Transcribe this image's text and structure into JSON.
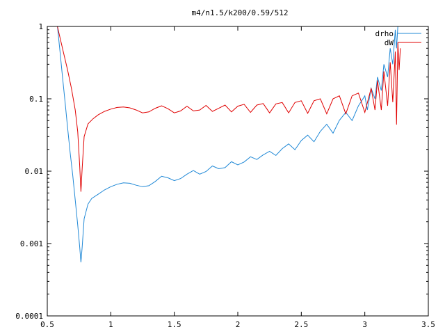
{
  "chart_data": {
    "type": "line",
    "title": "m4/n1.5/k200/0.59/512",
    "xlabel": "",
    "ylabel": "",
    "xlim": [
      0.5,
      3.5
    ],
    "ylim": [
      0.0001,
      1
    ],
    "yscale": "log",
    "grid": false,
    "legend_position": "top-right",
    "x_ticks": [
      "0.5",
      "1",
      "1.5",
      "2",
      "2.5",
      "3",
      "3.5"
    ],
    "y_ticks": [
      "1",
      "0.1",
      "0.01",
      "0.001",
      "0.0001"
    ],
    "series": [
      {
        "name": "drho",
        "color": "#1f88d6",
        "points": [
          [
            0.58,
            1.0
          ],
          [
            0.6,
            0.45
          ],
          [
            0.62,
            0.2
          ],
          [
            0.64,
            0.09
          ],
          [
            0.66,
            0.04
          ],
          [
            0.68,
            0.018
          ],
          [
            0.7,
            0.009
          ],
          [
            0.72,
            0.004
          ],
          [
            0.74,
            0.0018
          ],
          [
            0.755,
            0.0009
          ],
          [
            0.765,
            0.00055
          ],
          [
            0.775,
            0.0009
          ],
          [
            0.79,
            0.0022
          ],
          [
            0.82,
            0.0035
          ],
          [
            0.85,
            0.0042
          ],
          [
            0.9,
            0.0048
          ],
          [
            0.95,
            0.0055
          ],
          [
            1.0,
            0.0061
          ],
          [
            1.05,
            0.0066
          ],
          [
            1.1,
            0.0069
          ],
          [
            1.15,
            0.0068
          ],
          [
            1.2,
            0.0064
          ],
          [
            1.25,
            0.0061
          ],
          [
            1.3,
            0.0063
          ],
          [
            1.35,
            0.0072
          ],
          [
            1.4,
            0.0085
          ],
          [
            1.45,
            0.0081
          ],
          [
            1.5,
            0.0074
          ],
          [
            1.55,
            0.0079
          ],
          [
            1.6,
            0.0091
          ],
          [
            1.65,
            0.0102
          ],
          [
            1.7,
            0.0091
          ],
          [
            1.75,
            0.0099
          ],
          [
            1.8,
            0.0118
          ],
          [
            1.85,
            0.0108
          ],
          [
            1.9,
            0.0112
          ],
          [
            1.95,
            0.0135
          ],
          [
            2.0,
            0.0122
          ],
          [
            2.05,
            0.0134
          ],
          [
            2.1,
            0.0158
          ],
          [
            2.15,
            0.0145
          ],
          [
            2.2,
            0.0168
          ],
          [
            2.25,
            0.0188
          ],
          [
            2.3,
            0.0165
          ],
          [
            2.35,
            0.0205
          ],
          [
            2.4,
            0.0238
          ],
          [
            2.45,
            0.0198
          ],
          [
            2.5,
            0.0265
          ],
          [
            2.55,
            0.0315
          ],
          [
            2.6,
            0.0255
          ],
          [
            2.65,
            0.0355
          ],
          [
            2.7,
            0.0445
          ],
          [
            2.75,
            0.0335
          ],
          [
            2.8,
            0.0505
          ],
          [
            2.85,
            0.065
          ],
          [
            2.9,
            0.05
          ],
          [
            2.95,
            0.08
          ],
          [
            3.0,
            0.11
          ],
          [
            3.02,
            0.07
          ],
          [
            3.05,
            0.14
          ],
          [
            3.08,
            0.1
          ],
          [
            3.1,
            0.2
          ],
          [
            3.13,
            0.13
          ],
          [
            3.15,
            0.3
          ],
          [
            3.18,
            0.2
          ],
          [
            3.2,
            0.5
          ],
          [
            3.22,
            0.3
          ],
          [
            3.24,
            0.9
          ],
          [
            3.25,
            0.5
          ],
          [
            3.26,
            1.0
          ]
        ]
      },
      {
        "name": "dW",
        "color": "#e00000",
        "points": [
          [
            0.58,
            1.0
          ],
          [
            0.6,
            0.7
          ],
          [
            0.63,
            0.42
          ],
          [
            0.66,
            0.25
          ],
          [
            0.69,
            0.14
          ],
          [
            0.72,
            0.07
          ],
          [
            0.74,
            0.035
          ],
          [
            0.755,
            0.012
          ],
          [
            0.765,
            0.0052
          ],
          [
            0.775,
            0.011
          ],
          [
            0.79,
            0.03
          ],
          [
            0.82,
            0.045
          ],
          [
            0.86,
            0.053
          ],
          [
            0.9,
            0.06
          ],
          [
            0.95,
            0.067
          ],
          [
            1.0,
            0.072
          ],
          [
            1.05,
            0.076
          ],
          [
            1.1,
            0.077
          ],
          [
            1.15,
            0.075
          ],
          [
            1.2,
            0.07
          ],
          [
            1.25,
            0.064
          ],
          [
            1.3,
            0.066
          ],
          [
            1.35,
            0.074
          ],
          [
            1.4,
            0.08
          ],
          [
            1.45,
            0.073
          ],
          [
            1.5,
            0.064
          ],
          [
            1.55,
            0.068
          ],
          [
            1.6,
            0.079
          ],
          [
            1.65,
            0.068
          ],
          [
            1.7,
            0.07
          ],
          [
            1.75,
            0.081
          ],
          [
            1.8,
            0.067
          ],
          [
            1.85,
            0.074
          ],
          [
            1.9,
            0.082
          ],
          [
            1.95,
            0.066
          ],
          [
            2.0,
            0.079
          ],
          [
            2.05,
            0.084
          ],
          [
            2.1,
            0.065
          ],
          [
            2.15,
            0.082
          ],
          [
            2.2,
            0.086
          ],
          [
            2.25,
            0.064
          ],
          [
            2.3,
            0.085
          ],
          [
            2.35,
            0.089
          ],
          [
            2.4,
            0.064
          ],
          [
            2.45,
            0.089
          ],
          [
            2.5,
            0.094
          ],
          [
            2.55,
            0.063
          ],
          [
            2.6,
            0.094
          ],
          [
            2.65,
            0.1
          ],
          [
            2.7,
            0.062
          ],
          [
            2.75,
            0.1
          ],
          [
            2.8,
            0.11
          ],
          [
            2.85,
            0.062
          ],
          [
            2.9,
            0.11
          ],
          [
            2.95,
            0.12
          ],
          [
            3.0,
            0.065
          ],
          [
            3.05,
            0.14
          ],
          [
            3.08,
            0.07
          ],
          [
            3.1,
            0.18
          ],
          [
            3.13,
            0.07
          ],
          [
            3.15,
            0.24
          ],
          [
            3.18,
            0.08
          ],
          [
            3.2,
            0.32
          ],
          [
            3.22,
            0.09
          ],
          [
            3.24,
            0.45
          ],
          [
            3.25,
            0.044
          ],
          [
            3.26,
            0.6
          ],
          [
            3.27,
            0.25
          ],
          [
            3.28,
            0.5
          ]
        ]
      }
    ]
  }
}
